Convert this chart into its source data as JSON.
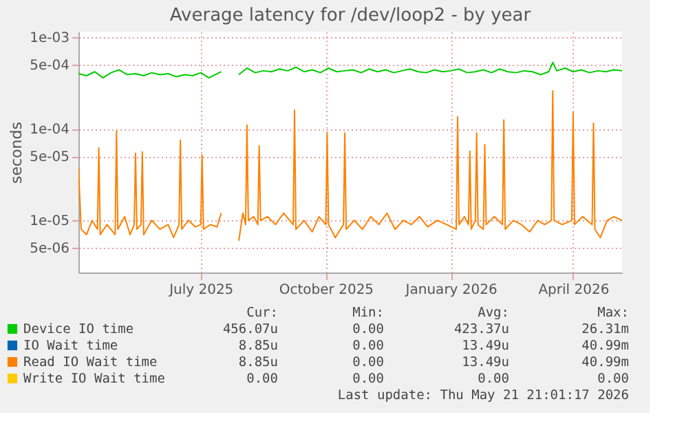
{
  "chart_data": {
    "type": "line",
    "title": "Average latency for /dev/loop2 - by year",
    "ylabel": "seconds",
    "log": true,
    "grid": true,
    "legend": "bottom",
    "xlim": [
      "2025-04-16",
      "2026-05-21"
    ],
    "xticks": [
      {
        "value": "2025-07-15",
        "label": "July 2025"
      },
      {
        "value": "2025-10-15",
        "label": "October 2025"
      },
      {
        "value": "2026-01-15",
        "label": "January 2026"
      },
      {
        "value": "2026-04-15",
        "label": "April 2026"
      }
    ],
    "ylim": [
      2.7e-06,
      0.00115
    ],
    "yticks": [
      {
        "value": 0.001,
        "label": "1e-03"
      },
      {
        "value": 0.0005,
        "label": "5e-04"
      },
      {
        "value": 0.0001,
        "label": "1e-04"
      },
      {
        "value": 5e-05,
        "label": "5e-05"
      },
      {
        "value": 1e-05,
        "label": "1e-05"
      },
      {
        "value": 5e-06,
        "label": "5e-06"
      }
    ],
    "series": [
      {
        "name": "Device IO time",
        "color": "#00cc00",
        "x": [
          "2025-04-16",
          "2025-04-22",
          "2025-04-28",
          "2025-05-04",
          "2025-05-10",
          "2025-05-16",
          "2025-05-22",
          "2025-05-28",
          "2025-06-03",
          "2025-06-09",
          "2025-06-15",
          "2025-06-21",
          "2025-06-27",
          "2025-07-03",
          "2025-07-09",
          "2025-07-15",
          "2025-07-21",
          "2025-07-27",
          "2025-07-30",
          "2025-07-31",
          "2025-08-11",
          "2025-08-12",
          "2025-08-18",
          "2025-08-24",
          "2025-08-30",
          "2025-09-05",
          "2025-09-11",
          "2025-09-17",
          "2025-09-23",
          "2025-09-29",
          "2025-10-05",
          "2025-10-11",
          "2025-10-17",
          "2025-10-23",
          "2025-10-29",
          "2025-11-04",
          "2025-11-10",
          "2025-11-16",
          "2025-11-22",
          "2025-11-28",
          "2025-12-04",
          "2025-12-10",
          "2025-12-16",
          "2025-12-22",
          "2025-12-28",
          "2026-01-03",
          "2026-01-09",
          "2026-01-15",
          "2026-01-21",
          "2026-01-27",
          "2026-02-02",
          "2026-02-08",
          "2026-02-14",
          "2026-02-20",
          "2026-02-26",
          "2026-03-04",
          "2026-03-10",
          "2026-03-16",
          "2026-03-22",
          "2026-03-28",
          "2026-03-31",
          "2026-04-03",
          "2026-04-09",
          "2026-04-15",
          "2026-04-21",
          "2026-04-27",
          "2026-05-03",
          "2026-05-09",
          "2026-05-15",
          "2026-05-21"
        ],
        "values": [
          0.0004,
          0.00038,
          0.00042,
          0.00036,
          0.00041,
          0.00044,
          0.00039,
          0.0004,
          0.00038,
          0.00041,
          0.00039,
          0.0004,
          0.00037,
          0.00039,
          0.00038,
          0.00041,
          0.00036,
          0.0004,
          0.00042,
          null,
          null,
          0.00039,
          0.00046,
          0.00041,
          0.00043,
          0.00042,
          0.00045,
          0.00043,
          0.00047,
          0.00042,
          0.00044,
          0.00041,
          0.00046,
          0.00042,
          0.00043,
          0.00044,
          0.00041,
          0.00045,
          0.00042,
          0.00044,
          0.00041,
          0.00043,
          0.00045,
          0.00042,
          0.00041,
          0.00044,
          0.00042,
          0.00043,
          0.00045,
          0.00041,
          0.00042,
          0.00044,
          0.00041,
          0.00045,
          0.00042,
          0.00041,
          0.00043,
          0.00042,
          0.00039,
          0.00042,
          0.00053,
          0.00043,
          0.00046,
          0.00042,
          0.00044,
          0.00041,
          0.00043,
          0.00042,
          0.00044,
          0.00043
        ]
      },
      {
        "name": "IO Wait time",
        "color": "#0066b3"
      },
      {
        "name": "Read IO Wait time",
        "color": "#ff8000",
        "x": [
          "2025-04-16",
          "2025-04-18",
          "2025-04-22",
          "2025-04-26",
          "2025-04-30",
          "2025-05-01",
          "2025-05-02",
          "2025-05-07",
          "2025-05-13",
          "2025-05-14",
          "2025-05-15",
          "2025-05-20",
          "2025-05-24",
          "2025-05-27",
          "2025-05-28",
          "2025-05-29",
          "2025-06-01",
          "2025-06-02",
          "2025-06-03",
          "2025-06-09",
          "2025-06-15",
          "2025-06-21",
          "2025-06-25",
          "2025-06-29",
          "2025-06-30",
          "2025-07-01",
          "2025-07-06",
          "2025-07-11",
          "2025-07-15",
          "2025-07-16",
          "2025-07-17",
          "2025-07-22",
          "2025-07-27",
          "2025-07-30",
          "2025-07-31",
          "2025-08-11",
          "2025-08-12",
          "2025-08-15",
          "2025-08-17",
          "2025-08-18",
          "2025-08-19",
          "2025-08-23",
          "2025-08-26",
          "2025-08-27",
          "2025-08-28",
          "2025-09-02",
          "2025-09-08",
          "2025-09-14",
          "2025-09-21",
          "2025-09-22",
          "2025-09-23",
          "2025-09-29",
          "2025-10-05",
          "2025-10-10",
          "2025-10-15",
          "2025-10-16",
          "2025-10-17",
          "2025-10-22",
          "2025-10-28",
          "2025-10-29",
          "2025-10-30",
          "2025-11-05",
          "2025-11-11",
          "2025-11-17",
          "2025-11-23",
          "2025-11-29",
          "2025-12-05",
          "2025-12-11",
          "2025-12-17",
          "2025-12-23",
          "2025-12-29",
          "2026-01-05",
          "2026-01-12",
          "2026-01-19",
          "2026-01-20",
          "2026-01-21",
          "2026-01-25",
          "2026-01-28",
          "2026-01-29",
          "2026-01-30",
          "2026-02-02",
          "2026-02-03",
          "2026-02-04",
          "2026-02-08",
          "2026-02-09",
          "2026-02-10",
          "2026-02-16",
          "2026-02-22",
          "2026-02-23",
          "2026-02-24",
          "2026-03-02",
          "2026-03-08",
          "2026-03-14",
          "2026-03-20",
          "2026-03-25",
          "2026-03-30",
          "2026-03-31",
          "2026-04-01",
          "2026-04-07",
          "2026-04-14",
          "2026-04-15",
          "2026-04-16",
          "2026-04-22",
          "2026-04-29",
          "2026-04-30",
          "2026-05-01",
          "2026-05-05",
          "2026-05-10",
          "2026-05-15",
          "2026-05-21"
        ],
        "values": [
          3.8e-05,
          8e-06,
          7e-06,
          1e-05,
          8e-06,
          6.2e-05,
          7e-06,
          9e-06,
          7e-06,
          9.5e-05,
          8e-06,
          1.1e-05,
          7e-06,
          9e-06,
          5.4e-05,
          8e-06,
          9e-06,
          5.6e-05,
          7e-06,
          1e-05,
          8e-06,
          9e-06,
          6.5e-06,
          9e-06,
          7.5e-05,
          8e-06,
          1e-05,
          8.5e-06,
          9e-06,
          5.2e-05,
          8e-06,
          9e-06,
          8.5e-06,
          1.2e-05,
          null,
          null,
          6e-06,
          1.2e-05,
          9e-06,
          0.00011,
          1e-05,
          1.1e-05,
          9e-06,
          6.5e-05,
          1e-05,
          1.1e-05,
          9e-06,
          1.2e-05,
          9e-06,
          0.00016,
          8e-06,
          1e-05,
          7.5e-06,
          1.1e-05,
          9e-06,
          9e-05,
          9e-06,
          6.5e-06,
          9e-06,
          9e-05,
          8e-06,
          1e-05,
          8e-06,
          1.1e-05,
          9e-06,
          1.2e-05,
          8e-06,
          1e-05,
          9e-06,
          1.1e-05,
          8.5e-06,
          1e-05,
          9e-06,
          8e-06,
          0.000135,
          9e-06,
          1.1e-05,
          9e-06,
          5.7e-05,
          8e-06,
          1e-05,
          9e-05,
          9e-06,
          8e-06,
          6.7e-05,
          9e-06,
          1.1e-05,
          9e-06,
          0.000125,
          8e-06,
          1e-05,
          9e-06,
          7.5e-06,
          1e-05,
          9e-06,
          1e-05,
          0.00026,
          1e-05,
          9e-06,
          1e-05,
          0.00015,
          9e-06,
          1.1e-05,
          9e-06,
          0.000115,
          8e-06,
          6.5e-06,
          1e-05,
          1.1e-05,
          1e-05
        ]
      },
      {
        "name": "Write IO Wait time",
        "color": "#ffcc00"
      }
    ],
    "annotations": [
      "Cur:",
      "Min:",
      "Avg:",
      "Max:",
      "456.07u",
      "0.00",
      "423.37u",
      "26.31m",
      "8.85u",
      "0.00",
      "13.49u",
      "40.99m",
      "8.85u",
      "0.00",
      "13.49u",
      "40.99m",
      "0.00",
      "0.00",
      "0.00",
      "0.00",
      "Last update: Thu May 21 21:01:17 2026"
    ]
  }
}
